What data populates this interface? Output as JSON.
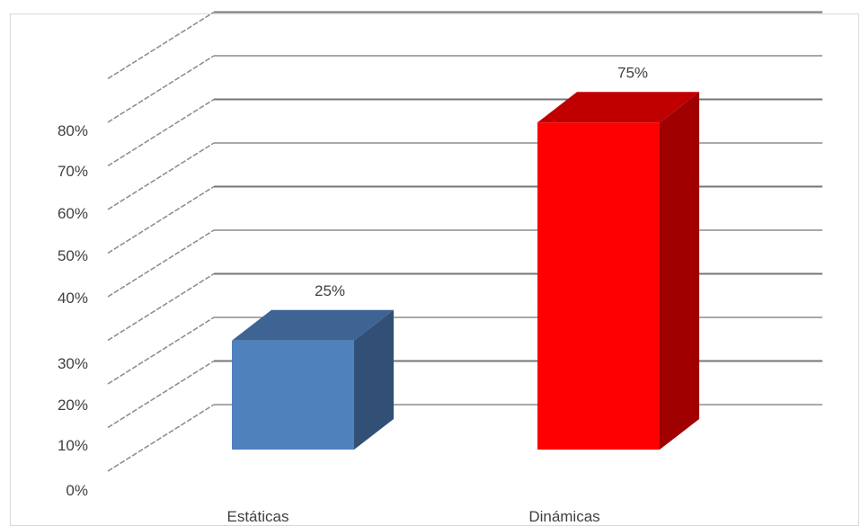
{
  "chart_data": {
    "type": "bar",
    "style": "3d-column",
    "categories": [
      "Estáticas",
      "Dinámicas"
    ],
    "values": [
      25,
      75
    ],
    "data_labels": [
      "25%",
      "75%"
    ],
    "y_ticks": [
      "0%",
      "10%",
      "20%",
      "30%",
      "40%",
      "50%",
      "60%",
      "70%",
      "80%"
    ],
    "ylim": [
      0,
      80
    ],
    "grid": true,
    "legend": false,
    "title": "",
    "xlabel": "",
    "ylabel": "",
    "colors": {
      "Estáticas": {
        "front": "#4f81bd",
        "top": "#3e6493",
        "side": "#324f76"
      },
      "Dinámicas": {
        "front": "#ff0000",
        "top": "#c00000",
        "side": "#a00000"
      },
      "gridline": "#8c8c8c",
      "backwall_gridline": "#767676"
    }
  }
}
